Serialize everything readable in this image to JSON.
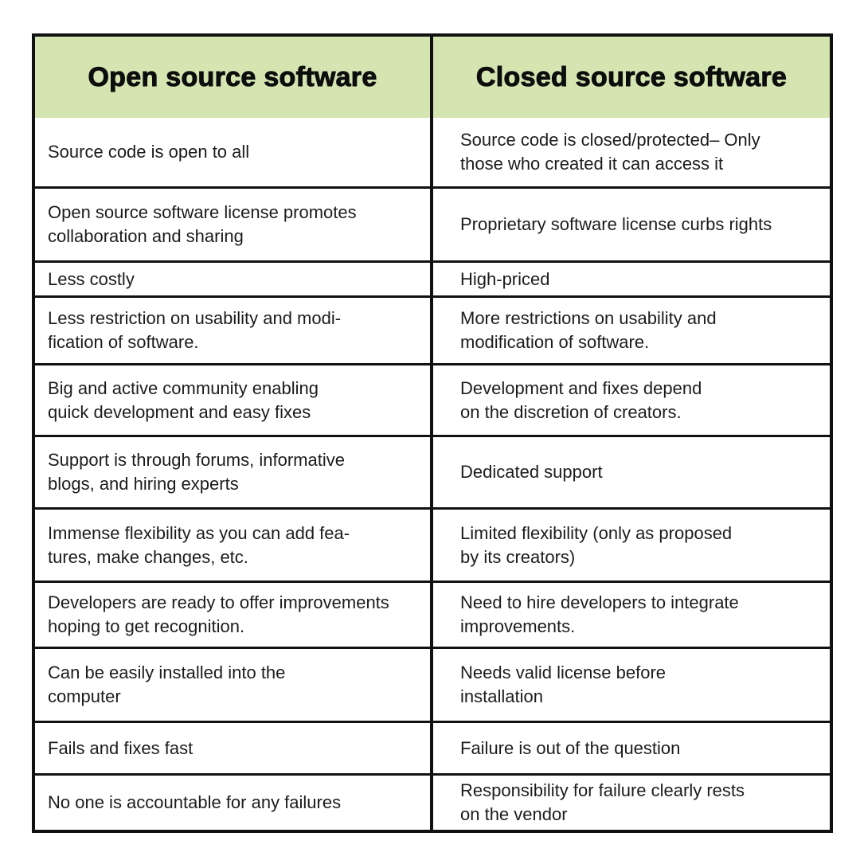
{
  "colors": {
    "header_bg": "#d4e5b2",
    "border": "#111111",
    "text": "#1c1c1c",
    "page_bg": "#ffffff"
  },
  "table": {
    "header": {
      "open": "Open source software",
      "closed": "Closed source software"
    },
    "rows": [
      {
        "open": "Source code is open to all",
        "closed": "Source code is closed/protected– Only\nthose who created it can access it"
      },
      {
        "open": "Open source software license promotes\ncollaboration and sharing",
        "closed": "Proprietary software license curbs rights"
      },
      {
        "open": "Less costly",
        "closed": "High-priced"
      },
      {
        "open": "Less restriction on usability and modi-\nfication of software.",
        "closed": "More restrictions on usability and\nmodification of software."
      },
      {
        "open": "Big and active community enabling\nquick development and easy fixes",
        "closed": "Development and fixes depend\non the discretion of creators."
      },
      {
        "open": "Support is through forums, informative\nblogs, and hiring experts",
        "closed": "Dedicated support"
      },
      {
        "open": "Immense flexibility as you can add fea-\ntures, make changes, etc.",
        "closed": "Limited flexibility (only as proposed\nby its creators)"
      },
      {
        "open": "Developers are ready to offer improvements\nhoping to get recognition.",
        "closed": "Need to hire developers to integrate\nimprovements."
      },
      {
        "open": "Can be easily installed into the\ncomputer",
        "closed": "Needs valid license before\ninstallation"
      },
      {
        "open": "Fails and fixes fast",
        "closed": "Failure is out of the question"
      },
      {
        "open": "No one is accountable for any failures",
        "closed": "Responsibility for failure clearly rests\non the vendor"
      }
    ]
  }
}
